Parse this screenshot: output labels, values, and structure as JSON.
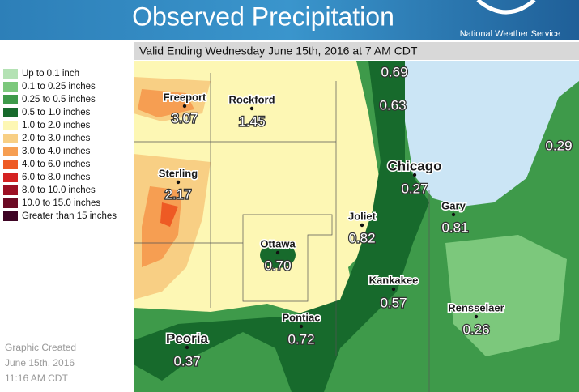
{
  "header": {
    "title": "Observed Precipitation",
    "agency": "National Weather Service"
  },
  "subtitle": "Valid Ending Wednesday June 15th, 2016 at 7 AM CDT",
  "legend": [
    {
      "label": "Up to 0.1 inch",
      "color": "#b4e2b4"
    },
    {
      "label": "0.1 to 0.25 inches",
      "color": "#7cc87c"
    },
    {
      "label": "0.25 to 0.5 inches",
      "color": "#3e9a4a"
    },
    {
      "label": "0.5 to 1.0 inches",
      "color": "#176a2c"
    },
    {
      "label": "1.0 to 2.0 inches",
      "color": "#fdf7b4"
    },
    {
      "label": "2.0 to 3.0 inches",
      "color": "#f8cf84"
    },
    {
      "label": "3.0 to 4.0 inches",
      "color": "#f69e52"
    },
    {
      "label": "4.0 to 6.0 inches",
      "color": "#ee5a24"
    },
    {
      "label": "6.0 to 8.0 inches",
      "color": "#d42222"
    },
    {
      "label": "8.0 to 10.0 inches",
      "color": "#9c1024"
    },
    {
      "label": "10.0 to 15.0 inches",
      "color": "#6c0a24"
    },
    {
      "label": "Greater than 15 inches",
      "color": "#3e0424"
    }
  ],
  "created": [
    "Graphic Created",
    "June 15th, 2016",
    "11:16 AM CDT"
  ],
  "cities": [
    {
      "name": "Freeport",
      "value": "3.07"
    },
    {
      "name": "Rockford",
      "value": "1.45"
    },
    {
      "name": "Sterling",
      "value": "2.17"
    },
    {
      "name": "Chicago",
      "value": "0.27"
    },
    {
      "name": "Joliet",
      "value": "0.82"
    },
    {
      "name": "Ottawa",
      "value": "0.70"
    },
    {
      "name": "Kankakee",
      "value": "0.57"
    },
    {
      "name": "Gary",
      "value": "0.81"
    },
    {
      "name": "Rensselaer",
      "value": "0.26"
    },
    {
      "name": "Pontiac",
      "value": "0.72"
    },
    {
      "name": "Peoria",
      "value": "0.37"
    }
  ],
  "other_values": [
    "0.69",
    "0.63",
    "0.29"
  ]
}
